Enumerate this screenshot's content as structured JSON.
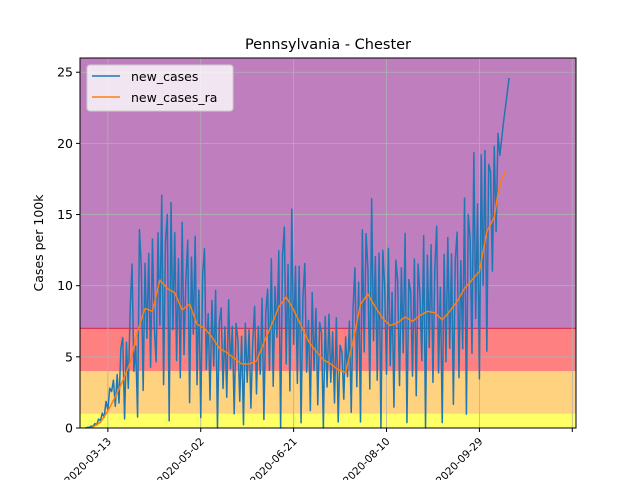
{
  "chart_data": {
    "type": "line",
    "title": "Pennsylvania - Chester",
    "xlabel": "",
    "ylabel": "Cases per 100k",
    "x_start": "2020-03-01",
    "x_range": [
      "2020-02-27",
      "2020-11-20"
    ],
    "ylim": [
      0,
      26
    ],
    "y_ticks": [
      0,
      5,
      10,
      15,
      20,
      25
    ],
    "x_ticks": [
      {
        "date": "2020-03-13",
        "label": "2020-03-13"
      },
      {
        "date": "2020-05-02",
        "label": "2020-05-02"
      },
      {
        "date": "2020-06-21",
        "label": "2020-06-21"
      },
      {
        "date": "2020-08-10",
        "label": "2020-08-10"
      },
      {
        "date": "2020-09-29",
        "label": "2020-09-29"
      },
      {
        "date": "2020-11-18",
        "label": ""
      }
    ],
    "grid": true,
    "legend_position": "top-left",
    "bands": [
      {
        "from": 0,
        "to": 1,
        "color": "#ffff66"
      },
      {
        "from": 1,
        "to": 4,
        "color": "#ffd280"
      },
      {
        "from": 4,
        "to": 7,
        "color": "#ff8080"
      },
      {
        "from": 7,
        "to": 26,
        "color": "#bf7fbf"
      }
    ],
    "threshold_line": {
      "y": 7,
      "color": "#dd3355"
    },
    "series": [
      {
        "name": "new_cases",
        "color": "#1f77b4",
        "keypoints": [
          [
            0,
            0
          ],
          [
            3,
            0.1
          ],
          [
            6,
            0.3
          ],
          [
            9,
            0.8
          ],
          [
            12,
            1.6
          ],
          [
            15,
            2.4
          ],
          [
            18,
            3.5
          ],
          [
            21,
            4.2
          ],
          [
            24,
            5.5
          ],
          [
            27,
            7.2
          ],
          [
            30,
            8.7
          ],
          [
            33,
            9.0
          ],
          [
            36,
            8.3
          ],
          [
            40,
            10.3
          ],
          [
            44,
            10.0
          ],
          [
            48,
            9.8
          ],
          [
            52,
            8.5
          ],
          [
            56,
            8.9
          ],
          [
            60,
            7.6
          ],
          [
            64,
            7.0
          ],
          [
            68,
            6.4
          ],
          [
            72,
            5.7
          ],
          [
            76,
            5.4
          ],
          [
            80,
            5.0
          ],
          [
            84,
            4.6
          ],
          [
            88,
            4.6
          ],
          [
            92,
            4.8
          ],
          [
            96,
            6.0
          ],
          [
            100,
            7.0
          ],
          [
            104,
            8.3
          ],
          [
            108,
            9.0
          ],
          [
            112,
            8.4
          ],
          [
            116,
            7.3
          ],
          [
            120,
            6.3
          ],
          [
            124,
            5.6
          ],
          [
            128,
            5.0
          ],
          [
            132,
            4.6
          ],
          [
            136,
            4.2
          ],
          [
            140,
            4.0
          ],
          [
            144,
            6.0
          ],
          [
            148,
            8.5
          ],
          [
            152,
            9.3
          ],
          [
            156,
            8.6
          ],
          [
            160,
            7.8
          ],
          [
            164,
            7.3
          ],
          [
            168,
            7.4
          ],
          [
            172,
            7.6
          ],
          [
            176,
            7.3
          ],
          [
            180,
            7.8
          ],
          [
            184,
            8.1
          ],
          [
            188,
            8.0
          ],
          [
            192,
            7.5
          ],
          [
            196,
            8.0
          ],
          [
            200,
            8.6
          ],
          [
            204,
            9.5
          ],
          [
            208,
            10.5
          ],
          [
            212,
            11.5
          ],
          [
            216,
            13.5
          ],
          [
            220,
            16.5
          ],
          [
            222,
            18.0
          ],
          [
            225,
            21.5
          ],
          [
            228,
            24.6
          ]
        ],
        "deviations": [
          0,
          0.25,
          -0.25,
          0.3,
          -0.3,
          0.35,
          -0.3,
          0.35,
          -0.2,
          0.3,
          -0.3,
          0.4,
          -0.2,
          0.5,
          0.2,
          0.4,
          -0.45,
          0.2,
          -0.5,
          0.5,
          0.6,
          -0.85,
          0.3,
          -0.45,
          0.5,
          0.9,
          -0.4,
          -0.2,
          -0.9,
          0.7,
          0.3,
          -0.7,
          0.3,
          -0.3,
          0.4,
          -0.5,
          0.6,
          -0.2,
          -0.5,
          0.4,
          -0.3,
          0.6,
          -0.7,
          0.3,
          0.5,
          -0.95,
          0.6,
          -0.3,
          0.4,
          -0.5,
          0.3,
          -0.6,
          0.7,
          -0.4,
          0.2,
          0.5,
          -0.8,
          0.4,
          -0.2,
          0.7,
          -0.6,
          0.3,
          -0.9,
          0.5,
          0.8,
          -0.4,
          0.2,
          -0.7,
          0.4,
          -0.3,
          0.6,
          -1.0,
          0.3,
          0.5,
          -0.5,
          0.3,
          -0.6,
          0.7,
          -0.2,
          0.4,
          -0.8,
          0.5,
          0.3,
          -0.6,
          0.4,
          -0.95,
          0.6,
          -0.3,
          0.5,
          -0.7,
          0.3,
          0.8,
          -0.5,
          0.4,
          -0.3,
          0.6,
          -0.9,
          0.3,
          0.5,
          -0.4,
          0.7,
          -0.6,
          0.3,
          -0.2,
          0.5,
          -1.0,
          0.4,
          0.6,
          -0.5,
          0.3,
          -0.7,
          0.8,
          -0.3,
          0.4,
          -0.6,
          0.5,
          -0.95,
          0.3,
          0.7,
          -0.4,
          0.2,
          -0.8,
          0.6,
          -0.3,
          0.5,
          -0.7,
          0.4,
          0.3,
          -1.0,
          0.6,
          -0.4,
          0.7,
          -0.3,
          0.5,
          -0.6,
          0.8,
          -0.9,
          0.4,
          0.3,
          -0.5,
          0.6,
          -0.2,
          0.5,
          -0.8,
          0.4,
          0.7,
          -0.6,
          0.3,
          -0.95,
          0.6,
          -0.4,
          0.5,
          0.2,
          -0.7,
          0.8,
          -0.3,
          0.4,
          -0.6,
          0.5,
          -1.0,
          0.6,
          0.3,
          -0.5,
          0.7,
          -0.4,
          0.3,
          -0.8,
          0.6,
          0.4,
          -0.6,
          0.5,
          -0.3,
          0.8,
          -0.95,
          0.4,
          0.3,
          -0.5,
          0.6,
          -0.7,
          0.5,
          0.2,
          -0.4,
          0.7,
          -1.0,
          0.5,
          -0.3,
          0.6,
          -0.6,
          0.4,
          0.8,
          -0.5,
          0.3,
          -0.95,
          0.6,
          -0.4,
          0.7,
          -0.3,
          0.5,
          -0.8,
          0.4,
          0.6,
          -0.6,
          0.3,
          -0.4,
          0.7,
          -0.9,
          0.5,
          0.3,
          -0.5,
          0.8,
          -0.3,
          0.4,
          -0.7,
          0.6,
          -0.2,
          0.5,
          -0.6,
          0.3,
          0.2,
          -0.3,
          0.2,
          -0.2,
          0.15,
          0,
          0,
          0
        ]
      },
      {
        "name": "new_cases_ra",
        "color": "#ff7f0e",
        "keypoints": [
          [
            3,
            0
          ],
          [
            8,
            0.4
          ],
          [
            12,
            1.2
          ],
          [
            16,
            2.2
          ],
          [
            20,
            3.3
          ],
          [
            24,
            4.6
          ],
          [
            28,
            6.8
          ],
          [
            32,
            8.4
          ],
          [
            36,
            8.2
          ],
          [
            40,
            10.4
          ],
          [
            44,
            9.8
          ],
          [
            48,
            9.5
          ],
          [
            52,
            8.3
          ],
          [
            56,
            8.7
          ],
          [
            60,
            7.3
          ],
          [
            64,
            7.0
          ],
          [
            68,
            6.4
          ],
          [
            72,
            5.6
          ],
          [
            76,
            5.3
          ],
          [
            80,
            4.9
          ],
          [
            84,
            4.5
          ],
          [
            88,
            4.5
          ],
          [
            92,
            4.7
          ],
          [
            96,
            6.0
          ],
          [
            100,
            7.2
          ],
          [
            104,
            8.5
          ],
          [
            108,
            9.2
          ],
          [
            112,
            8.3
          ],
          [
            116,
            7.2
          ],
          [
            120,
            6.1
          ],
          [
            124,
            5.4
          ],
          [
            128,
            4.8
          ],
          [
            132,
            4.5
          ],
          [
            136,
            4.1
          ],
          [
            140,
            3.9
          ],
          [
            144,
            6.1
          ],
          [
            148,
            8.7
          ],
          [
            152,
            9.4
          ],
          [
            156,
            8.5
          ],
          [
            160,
            7.7
          ],
          [
            164,
            7.2
          ],
          [
            168,
            7.4
          ],
          [
            172,
            7.8
          ],
          [
            176,
            7.5
          ],
          [
            180,
            7.9
          ],
          [
            184,
            8.2
          ],
          [
            188,
            8.1
          ],
          [
            192,
            7.6
          ],
          [
            196,
            8.2
          ],
          [
            200,
            8.9
          ],
          [
            204,
            9.8
          ],
          [
            208,
            10.4
          ],
          [
            212,
            11.0
          ],
          [
            216,
            13.8
          ],
          [
            220,
            14.8
          ],
          [
            222,
            16.5
          ],
          [
            224,
            17.5
          ],
          [
            226,
            18.0
          ]
        ]
      }
    ]
  }
}
